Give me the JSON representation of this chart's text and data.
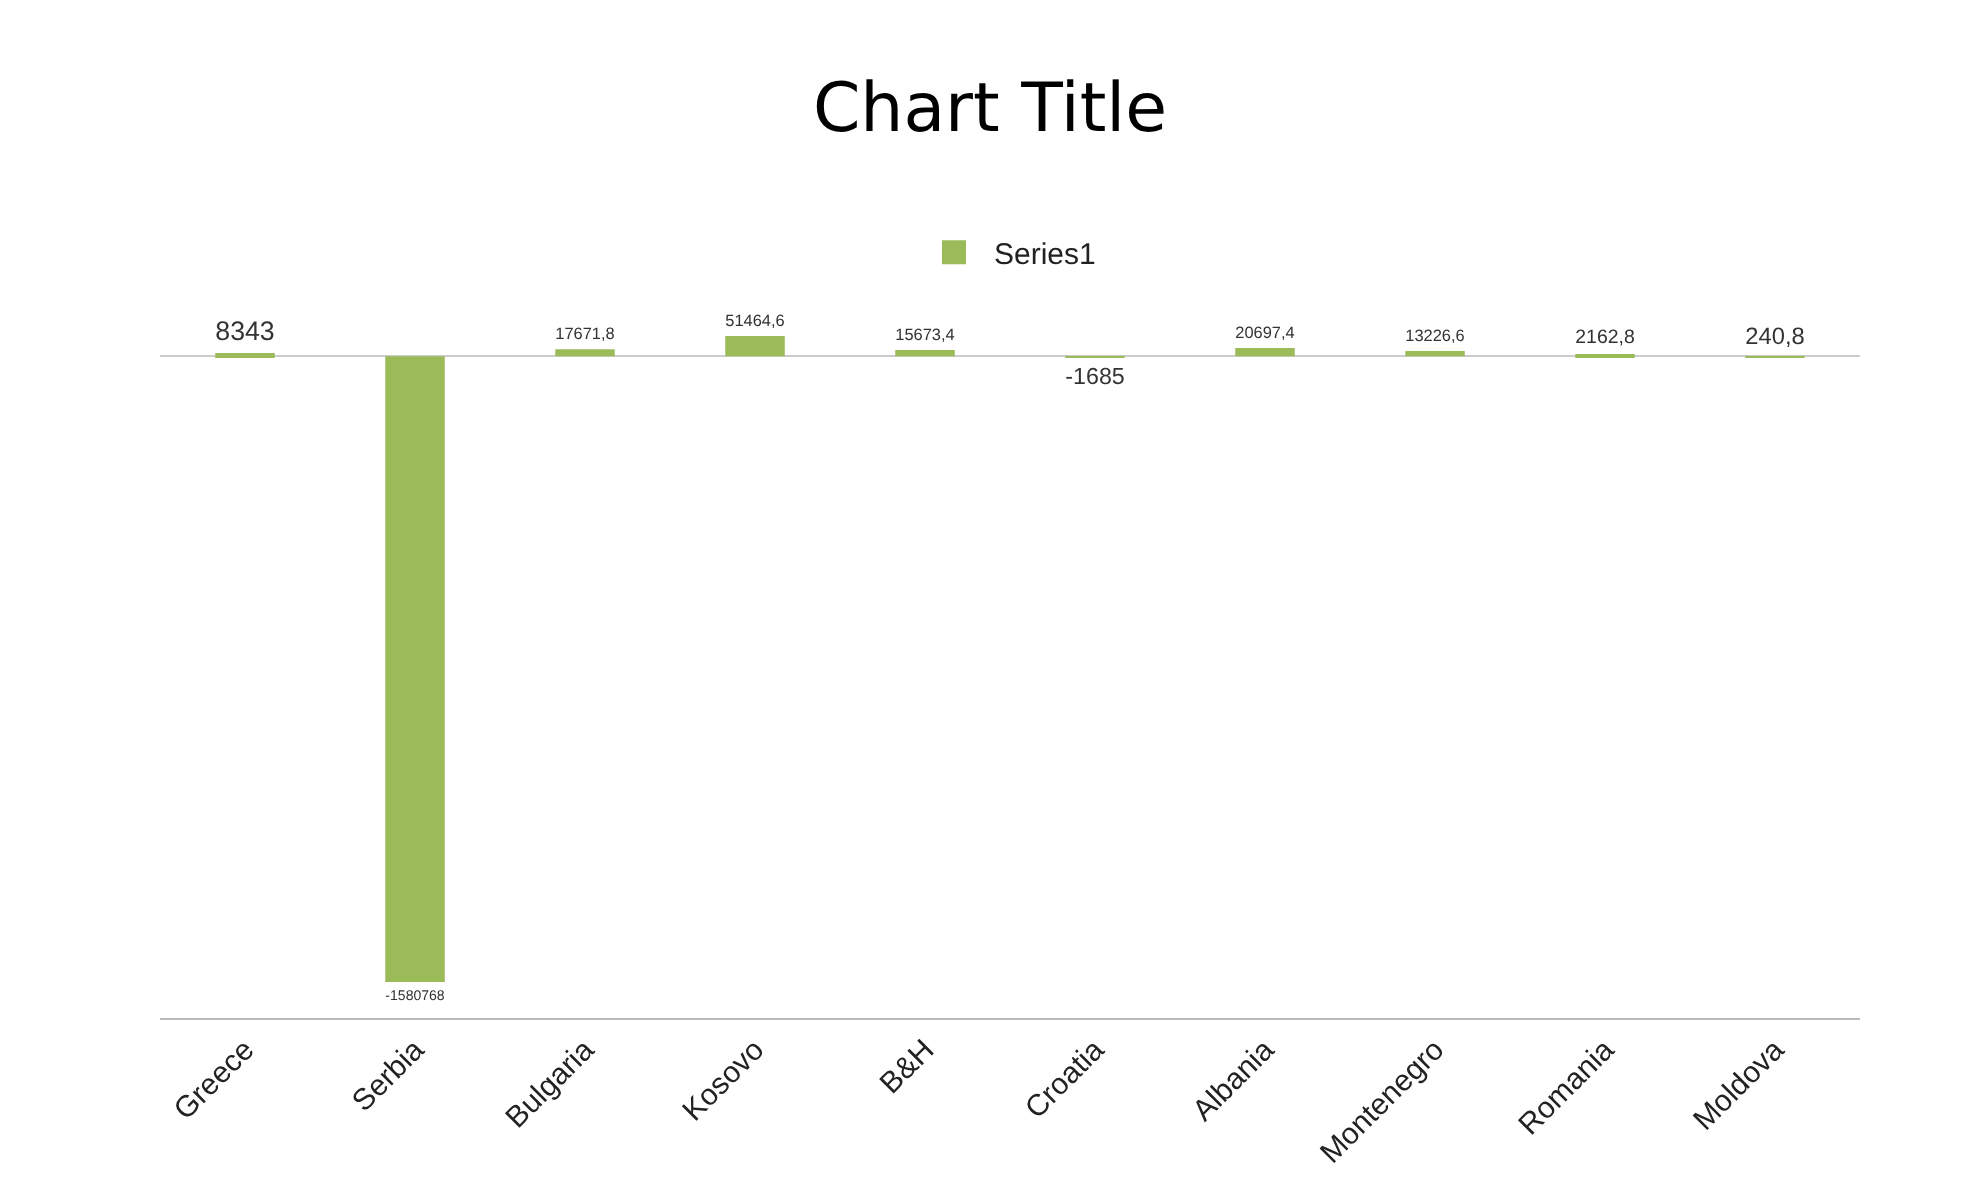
{
  "chart_data": {
    "type": "bar",
    "title": "Chart Title",
    "categories": [
      "Greece",
      "Serbia",
      "Bulgaria",
      "Kosovo",
      "B&H",
      "Croatia",
      "Albania",
      "Montenegro",
      "Romania",
      "Moldova"
    ],
    "series": [
      {
        "name": "Series1",
        "color": "#9bbb59",
        "values": [
          8343,
          -1580768,
          17671.8,
          51464.6,
          15673.4,
          -1685,
          20697.4,
          13226.6,
          2162.8,
          240.8
        ],
        "value_labels": [
          "8343",
          "-1580768",
          "17671,8",
          "51464,6",
          "15673,4",
          "-1685",
          "20697,4",
          "13226,6",
          "2162,8",
          "240,8"
        ]
      }
    ],
    "relative": false,
    "legend": "top",
    "grid": false
  }
}
